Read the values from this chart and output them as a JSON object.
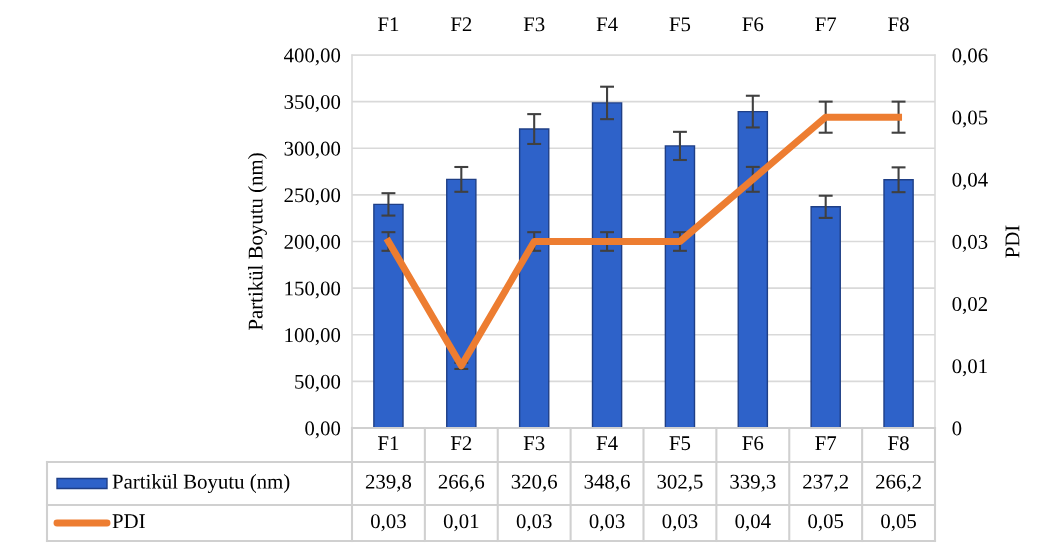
{
  "chart_data": {
    "type": "bar",
    "categories": [
      "F1",
      "F2",
      "F3",
      "F4",
      "F5",
      "F6",
      "F7",
      "F8"
    ],
    "ylabel": "Partikül Boyutu (nm)",
    "y2label": "PDI",
    "ylim": [
      0,
      400
    ],
    "yticks": [
      {
        "value": 0,
        "label": "0,00"
      },
      {
        "value": 50,
        "label": "50,00"
      },
      {
        "value": 100,
        "label": "100,00"
      },
      {
        "value": 150,
        "label": "150,00"
      },
      {
        "value": 200,
        "label": "200,00"
      },
      {
        "value": 250,
        "label": "250,00"
      },
      {
        "value": 300,
        "label": "300,00"
      },
      {
        "value": 350,
        "label": "350,00"
      },
      {
        "value": 400,
        "label": "400,00"
      }
    ],
    "y2lim": [
      0,
      0.06
    ],
    "y2ticks": [
      0,
      {
        "value": 0.01,
        "label": "0,01"
      },
      {
        "value": 0.02,
        "label": "0,02"
      },
      {
        "value": 0.03,
        "label": "0,03"
      },
      {
        "value": 0.04,
        "label": "0,04"
      },
      {
        "value": 0.05,
        "label": "0,05"
      },
      {
        "value": 0.06,
        "label": "0,06"
      }
    ],
    "grid": "y",
    "legend": "bottom",
    "series": [
      {
        "name": "Partikül Boyutu (nm)",
        "color": "#2e62c9",
        "values": [
          239.8,
          266.6,
          320.6,
          348.6,
          302.5,
          339.3,
          237.2,
          266.2
        ],
        "errors": [
          12,
          13.3,
          16,
          17.4,
          15.1,
          17,
          11.9,
          13.3
        ],
        "value_labels": [
          "239,8",
          "266,6",
          "320,6",
          "348,6",
          "302,5",
          "339,3",
          "237,2",
          "266,2"
        ]
      },
      {
        "name": "PDI",
        "type": "line",
        "axis": "y2",
        "color": "#ed7d31",
        "values": [
          0.03,
          0.01,
          0.03,
          0.03,
          0.03,
          0.04,
          0.05,
          0.05
        ],
        "errors": [
          0.0015,
          0.0005,
          0.0015,
          0.0015,
          0.0015,
          0.002,
          0.0025,
          0.0025
        ],
        "value_labels": [
          "0,03",
          "0,01",
          "0,03",
          "0,03",
          "0,03",
          "0,04",
          "0,05",
          "0,05"
        ],
        "marker": "none",
        "line_style": "solid"
      }
    ]
  }
}
